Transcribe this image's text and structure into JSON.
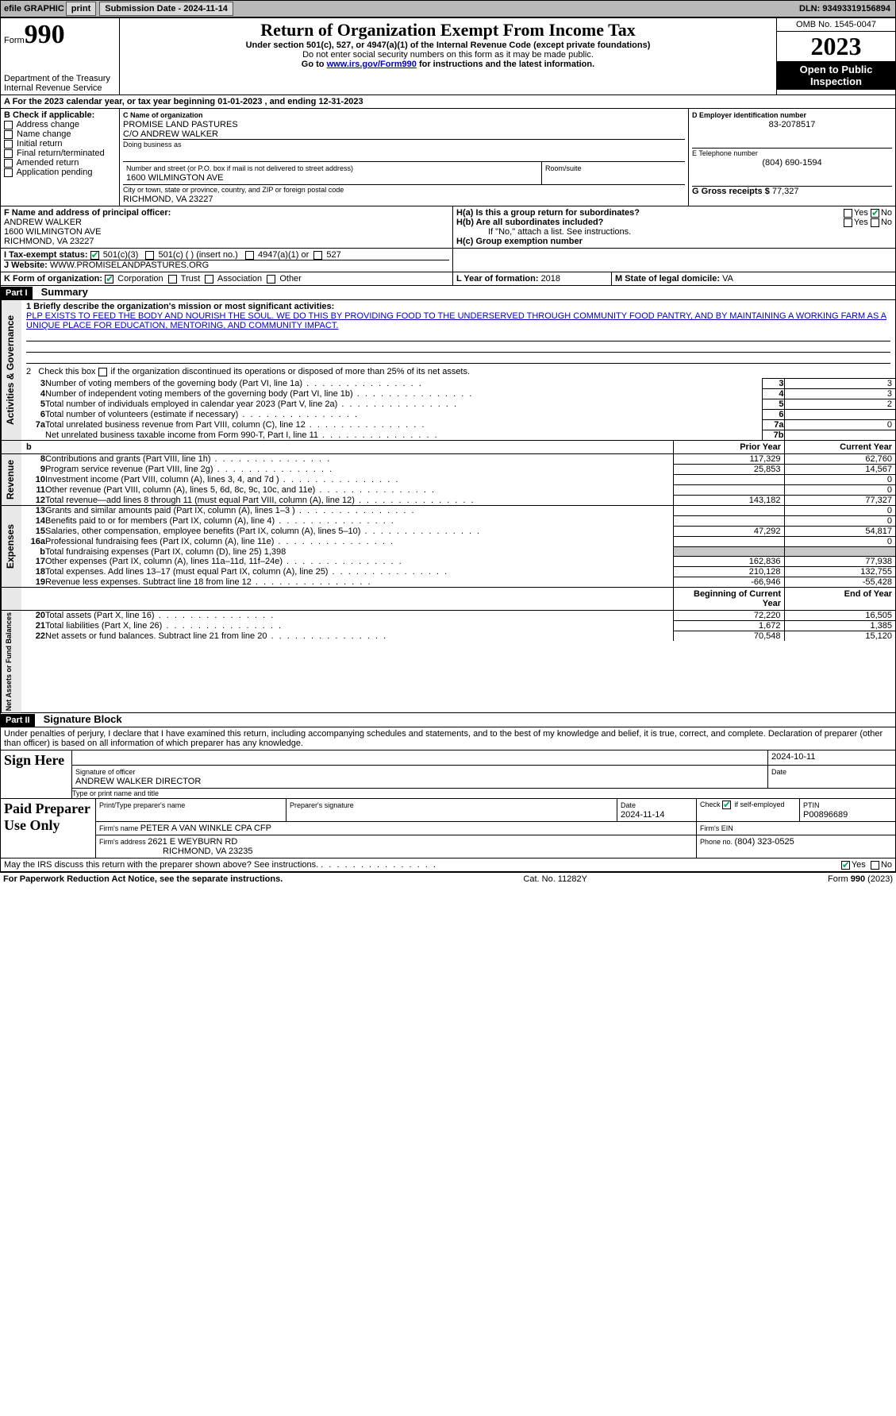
{
  "topbar": {
    "efile_label": "efile GRAPHIC",
    "print_btn": "print",
    "submission_label": "Submission Date - 2024-11-14",
    "dln": "DLN: 93493319156894"
  },
  "header": {
    "form_word": "Form",
    "form_num": "990",
    "dept": "Department of the Treasury",
    "irs": "Internal Revenue Service",
    "title": "Return of Organization Exempt From Income Tax",
    "subtitle": "Under section 501(c), 527, or 4947(a)(1) of the Internal Revenue Code (except private foundations)",
    "ssn_note": "Do not enter social security numbers on this form as it may be made public.",
    "goto_prefix": "Go to ",
    "goto_link": "www.irs.gov/Form990",
    "goto_suffix": " for instructions and the latest information.",
    "omb": "OMB No. 1545-0047",
    "year": "2023",
    "inspection": "Open to Public Inspection"
  },
  "periodA": {
    "prefix": "A For the 2023 calendar year, or tax year beginning ",
    "begin": "01-01-2023",
    "mid": " , and ending ",
    "end": "12-31-2023"
  },
  "boxB": {
    "label": "B Check if applicable:",
    "items": [
      "Address change",
      "Name change",
      "Initial return",
      "Final return/terminated",
      "Amended return",
      "Application pending"
    ]
  },
  "boxC": {
    "name_label": "C Name of organization",
    "name1": "PROMISE LAND PASTURES",
    "name2": "C/O ANDREW WALKER",
    "dba_label": "Doing business as",
    "street_label": "Number and street (or P.O. box if mail is not delivered to street address)",
    "street": "1600 WILMINGTON AVE",
    "room_label": "Room/suite",
    "city_label": "City or town, state or province, country, and ZIP or foreign postal code",
    "city": "RICHMOND, VA  23227"
  },
  "boxD": {
    "label": "D Employer identification number",
    "value": "83-2078517"
  },
  "boxE": {
    "label": "E Telephone number",
    "value": "(804) 690-1594"
  },
  "boxG": {
    "label": "G Gross receipts $",
    "value": "77,327"
  },
  "boxF": {
    "label": "F Name and address of principal officer:",
    "line1": "ANDREW WALKER",
    "line2": "1600 WILMINGTON AVE",
    "line3": "RICHMOND, VA  23227"
  },
  "boxH": {
    "ha": "H(a)  Is this a group return for subordinates?",
    "hb": "H(b)  Are all subordinates included?",
    "hb_note": "If \"No,\" attach a list. See instructions.",
    "hc": "H(c)  Group exemption number ",
    "yes": "Yes",
    "no": "No"
  },
  "boxI": {
    "label": "I   Tax-exempt status:",
    "c3": "501(c)(3)",
    "c": "501(c) (  ) (insert no.)",
    "a1": "4947(a)(1) or",
    "s527": "527"
  },
  "boxJ": {
    "label": "J   Website: ",
    "value": "WWW.PROMISELANDPASTURES.ORG"
  },
  "boxK": {
    "label": "K Form of organization:",
    "corp": "Corporation",
    "trust": "Trust",
    "assoc": "Association",
    "other": "Other"
  },
  "boxL": {
    "label": "L Year of formation: ",
    "value": "2018"
  },
  "boxM": {
    "label": "M State of legal domicile: ",
    "value": "VA"
  },
  "part1": {
    "tag": "Part I",
    "title": "Summary",
    "q1_label": "1   Briefly describe the organization's mission or most significant activities:",
    "q1_text": "PLP EXISTS TO FEED THE BODY AND NOURISH THE SOUL. WE DO THIS BY PROVIDING FOOD TO THE UNDERSERVED THROUGH COMMUNITY FOOD PANTRY, AND BY MAINTAINING A WORKING FARM AS A UNIQUE PLACE FOR EDUCATION, MENTORING, AND COMMUNITY IMPACT.",
    "q2": "2   Check this box       if the organization discontinued its operations or disposed of more than 25% of its net assets.",
    "rowsA": [
      {
        "n": "3",
        "t": "Number of voting members of the governing body (Part VI, line 1a)",
        "k": "3",
        "v": "3"
      },
      {
        "n": "4",
        "t": "Number of independent voting members of the governing body (Part VI, line 1b)",
        "k": "4",
        "v": "3"
      },
      {
        "n": "5",
        "t": "Total number of individuals employed in calendar year 2023 (Part V, line 2a)",
        "k": "5",
        "v": "2"
      },
      {
        "n": "6",
        "t": "Total number of volunteers (estimate if necessary)",
        "k": "6",
        "v": ""
      },
      {
        "n": "7a",
        "t": "Total unrelated business revenue from Part VIII, column (C), line 12",
        "k": "7a",
        "v": "0"
      },
      {
        "n": "",
        "t": "Net unrelated business taxable income from Form 990-T, Part I, line 11",
        "k": "7b",
        "v": ""
      }
    ],
    "col_prior": "Prior Year",
    "col_current": "Current Year",
    "rev_rows": [
      {
        "n": "8",
        "t": "Contributions and grants (Part VIII, line 1h)",
        "p": "117,329",
        "c": "62,760"
      },
      {
        "n": "9",
        "t": "Program service revenue (Part VIII, line 2g)",
        "p": "25,853",
        "c": "14,567"
      },
      {
        "n": "10",
        "t": "Investment income (Part VIII, column (A), lines 3, 4, and 7d )",
        "p": "",
        "c": "0"
      },
      {
        "n": "11",
        "t": "Other revenue (Part VIII, column (A), lines 5, 6d, 8c, 9c, 10c, and 11e)",
        "p": "",
        "c": "0"
      },
      {
        "n": "12",
        "t": "Total revenue—add lines 8 through 11 (must equal Part VIII, column (A), line 12)",
        "p": "143,182",
        "c": "77,327"
      }
    ],
    "exp_rows": [
      {
        "n": "13",
        "t": "Grants and similar amounts paid (Part IX, column (A), lines 1–3 )",
        "p": "",
        "c": "0"
      },
      {
        "n": "14",
        "t": "Benefits paid to or for members (Part IX, column (A), line 4)",
        "p": "",
        "c": "0"
      },
      {
        "n": "15",
        "t": "Salaries, other compensation, employee benefits (Part IX, column (A), lines 5–10)",
        "p": "47,292",
        "c": "54,817"
      },
      {
        "n": "16a",
        "t": "Professional fundraising fees (Part IX, column (A), line 11e)",
        "p": "",
        "c": "0"
      },
      {
        "n": "b",
        "t": "Total fundraising expenses (Part IX, column (D), line 25) 1,398",
        "p": "SHADE",
        "c": "SHADE"
      },
      {
        "n": "17",
        "t": "Other expenses (Part IX, column (A), lines 11a–11d, 11f–24e)",
        "p": "162,836",
        "c": "77,938"
      },
      {
        "n": "18",
        "t": "Total expenses. Add lines 13–17 (must equal Part IX, column (A), line 25)",
        "p": "210,128",
        "c": "132,755"
      },
      {
        "n": "19",
        "t": "Revenue less expenses. Subtract line 18 from line 12",
        "p": "-66,946",
        "c": "-55,428"
      }
    ],
    "col_begin": "Beginning of Current Year",
    "col_end": "End of Year",
    "na_rows": [
      {
        "n": "20",
        "t": "Total assets (Part X, line 16)",
        "p": "72,220",
        "c": "16,505"
      },
      {
        "n": "21",
        "t": "Total liabilities (Part X, line 26)",
        "p": "1,672",
        "c": "1,385"
      },
      {
        "n": "22",
        "t": "Net assets or fund balances. Subtract line 21 from line 20",
        "p": "70,548",
        "c": "15,120"
      }
    ],
    "side_ag": "Activities & Governance",
    "side_rev": "Revenue",
    "side_exp": "Expenses",
    "side_na": "Net Assets or Fund Balances"
  },
  "part2": {
    "tag": "Part II",
    "title": "Signature Block",
    "perjury": "Under penalties of perjury, I declare that I have examined this return, including accompanying schedules and statements, and to the best of my knowledge and belief, it is true, correct, and complete. Declaration of preparer (other than officer) is based on all information of which preparer has any knowledge.",
    "sign_here": "Sign Here",
    "sig_officer": "Signature of officer",
    "sig_date": "2024-10-11",
    "officer_name": "ANDREW WALKER  DIRECTOR",
    "type_name": "Type or print name and title",
    "date_label": "Date",
    "paid": "Paid Preparer Use Only",
    "print_type": "Print/Type preparer's name",
    "prep_sig": "Preparer's signature",
    "prep_date": "2024-11-14",
    "check_self": "Check        if self-employed",
    "ptin_label": "PTIN",
    "ptin": "P00896689",
    "firm_name_label": "Firm's name     ",
    "firm_name": "PETER A VAN WINKLE CPA CFP",
    "firm_ein": "Firm's EIN  ",
    "firm_addr_label": "Firm's address ",
    "firm_addr1": "2621 E WEYBURN RD",
    "firm_addr2": "RICHMOND, VA  23235",
    "phone_label": "Phone no. ",
    "phone": "(804) 323-0525",
    "discuss": "May the IRS discuss this return with the preparer shown above? See instructions."
  },
  "footer": {
    "paperwork": "For Paperwork Reduction Act Notice, see the separate instructions.",
    "cat": "Cat. No. 11282Y",
    "form": "Form 990 (2023)"
  },
  "colors": {
    "topbar_bg": "#b8b8b8",
    "btn_bg": "#d8d8d8",
    "link": "#0000cc",
    "shade": "#c8c8c8",
    "vert_bg": "#e8e8e8"
  }
}
